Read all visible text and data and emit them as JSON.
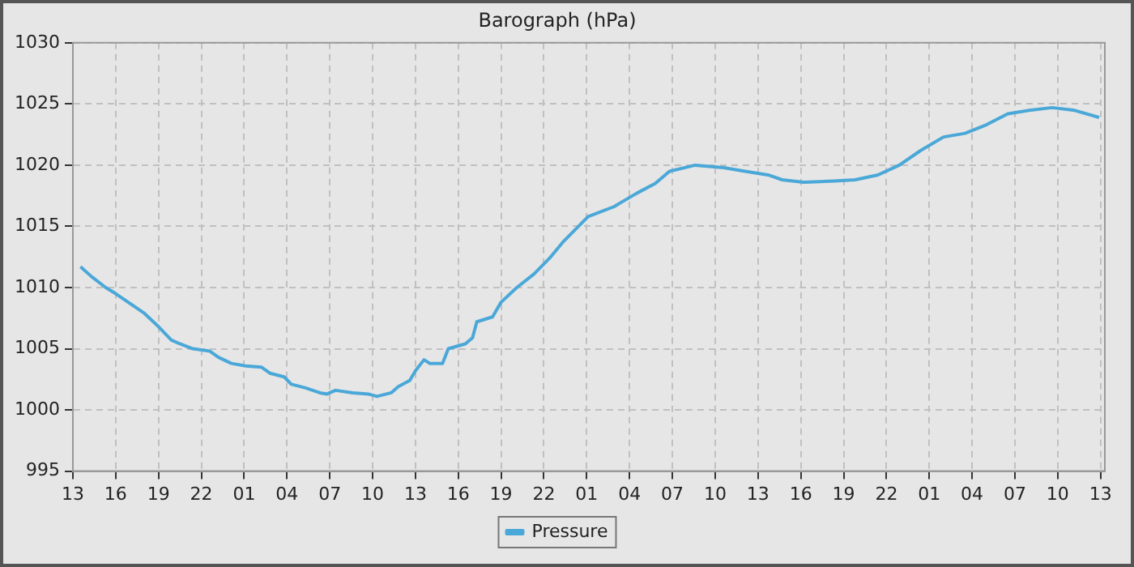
{
  "chart_data": {
    "type": "line",
    "title": "Barograph (hPa)",
    "x": [
      "--01-01T13:32",
      "--01-01T14:18",
      "--01-01T15:18",
      "--01-01T16:00",
      "--01-01T17:00",
      "--01-01T18:00",
      "--01-01T19:00",
      "--01-01T19:54",
      "--01-01T20:30",
      "--01-01T21:24",
      "--01-01T22:36",
      "--01-01T23:12",
      "--01-02T00:06",
      "--01-02T01:06",
      "--01-02T02:12",
      "--01-02T02:48",
      "--01-02T03:48",
      "--01-02T04:18",
      "--01-02T05:18",
      "--01-02T06:18",
      "--01-02T06:48",
      "--01-02T07:24",
      "--01-02T08:36",
      "--01-02T09:42",
      "--01-02T10:18",
      "--01-02T11:18",
      "--01-02T11:48",
      "--01-02T12:36",
      "--01-02T13:00",
      "--01-02T13:36",
      "--01-02T14:00",
      "--01-02T14:54",
      "--01-02T15:18",
      "--01-02T16:30",
      "--01-02T17:00",
      "--01-02T17:18",
      "--01-02T18:24",
      "--01-02T19:00",
      "--01-02T20:06",
      "--01-02T21:18",
      "--01-02T22:24",
      "--01-02T23:24",
      "--01-03T01:06",
      "--01-03T02:54",
      "--01-03T04:30",
      "--01-03T05:48",
      "--01-03T06:48",
      "--01-03T08:36",
      "--01-03T10:36",
      "--01-03T12:06",
      "--01-03T13:42",
      "--01-03T14:42",
      "--01-03T16:12",
      "--01-03T18:18",
      "--01-03T19:48",
      "--01-03T21:24",
      "--01-03T22:54",
      "--01-04T00:24",
      "--01-04T02:00",
      "--01-04T03:30",
      "--01-04T05:00",
      "--01-04T06:30",
      "--01-04T08:06",
      "--01-04T09:36",
      "--01-04T11:06",
      "--01-04T12:54"
    ],
    "series": [
      {
        "name": "Pressure",
        "color": "#4aa8d8",
        "values": [
          1011.7,
          1010.9,
          1010.0,
          1009.5,
          1008.7,
          1007.9,
          1006.8,
          1005.7,
          1005.4,
          1005.0,
          1004.8,
          1004.3,
          1003.8,
          1003.6,
          1003.5,
          1003.0,
          1002.7,
          1002.1,
          1001.8,
          1001.4,
          1001.3,
          1001.6,
          1001.4,
          1001.3,
          1001.1,
          1001.4,
          1001.9,
          1002.4,
          1003.2,
          1004.1,
          1003.8,
          1003.8,
          1005.0,
          1005.4,
          1005.9,
          1007.2,
          1007.6,
          1008.8,
          1010.0,
          1011.1,
          1012.4,
          1013.8,
          1015.8,
          1016.6,
          1017.7,
          1018.5,
          1019.5,
          1020.0,
          1019.8,
          1019.5,
          1019.2,
          1018.8,
          1018.6,
          1018.7,
          1018.8,
          1019.2,
          1020.0,
          1021.2,
          1022.3,
          1022.6,
          1023.3,
          1024.2,
          1024.5,
          1024.7,
          1024.5,
          1023.9
        ]
      }
    ],
    "xlim": [
      "--01-01T13:00",
      "--01-04T13:18"
    ],
    "xticks": [
      {
        "value": "--01-01T13:00",
        "label": "13"
      },
      {
        "value": "--01-01T16:00",
        "label": "16"
      },
      {
        "value": "--01-01T19:00",
        "label": "19"
      },
      {
        "value": "--01-01T22:00",
        "label": "22"
      },
      {
        "value": "--01-02T01:00",
        "label": "01"
      },
      {
        "value": "--01-02T04:00",
        "label": "04"
      },
      {
        "value": "--01-02T07:00",
        "label": "07"
      },
      {
        "value": "--01-02T10:00",
        "label": "10"
      },
      {
        "value": "--01-02T13:00",
        "label": "13"
      },
      {
        "value": "--01-02T16:00",
        "label": "16"
      },
      {
        "value": "--01-02T19:00",
        "label": "19"
      },
      {
        "value": "--01-02T22:00",
        "label": "22"
      },
      {
        "value": "--01-03T01:00",
        "label": "01"
      },
      {
        "value": "--01-03T04:00",
        "label": "04"
      },
      {
        "value": "--01-03T07:00",
        "label": "07"
      },
      {
        "value": "--01-03T10:00",
        "label": "10"
      },
      {
        "value": "--01-03T13:00",
        "label": "13"
      },
      {
        "value": "--01-03T16:00",
        "label": "16"
      },
      {
        "value": "--01-03T19:00",
        "label": "19"
      },
      {
        "value": "--01-03T22:00",
        "label": "22"
      },
      {
        "value": "--01-04T01:00",
        "label": "01"
      },
      {
        "value": "--01-04T04:00",
        "label": "04"
      },
      {
        "value": "--01-04T07:00",
        "label": "07"
      },
      {
        "value": "--01-04T10:00",
        "label": "10"
      },
      {
        "value": "--01-04T13:00",
        "label": "13"
      }
    ],
    "ylim": [
      995,
      1030
    ],
    "yticks": [
      995,
      1000,
      1005,
      1010,
      1015,
      1020,
      1025,
      1030
    ],
    "grid": true,
    "legend": "bottom",
    "marker": "none",
    "line_style": "solid"
  }
}
